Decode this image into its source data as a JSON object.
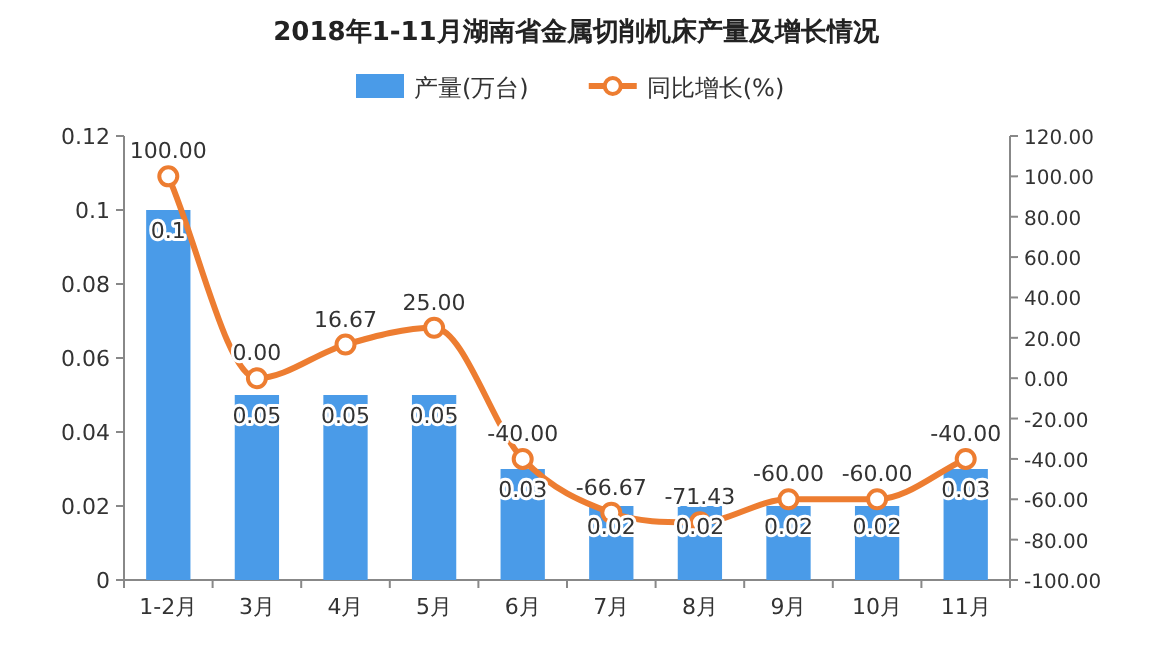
{
  "chart_data": {
    "type": "bar",
    "title": "2018年1-11月湖南省金属切削机床产量及增长情况",
    "categories": [
      "1-2月",
      "3月",
      "4月",
      "5月",
      "6月",
      "7月",
      "8月",
      "9月",
      "10月",
      "11月"
    ],
    "series": [
      {
        "name": "产量(万台)",
        "color": "#4a9be8",
        "values": [
          0.1,
          0.05,
          0.05,
          0.05,
          0.03,
          0.02,
          0.02,
          0.02,
          0.02,
          0.03
        ],
        "value_labels": [
          "0.1",
          "0.05",
          "0.05",
          "0.05",
          "0.03",
          "0.02",
          "0.02",
          "0.02",
          "0.02",
          "0.03"
        ]
      },
      {
        "name": "同比增长(%)",
        "type": "line",
        "axis": "y2",
        "color": "#ed7d31",
        "marker": "circle",
        "values": [
          100,
          0,
          16.67,
          25,
          -40,
          -66.67,
          -71.43,
          -60,
          -60,
          -40
        ],
        "value_labels": [
          "100.00",
          "0.00",
          "16.67",
          "25.00",
          "-40.00",
          "-66.67",
          "-71.43",
          "-60.00",
          "-60.00",
          "-40.00"
        ]
      }
    ],
    "ylim": [
      0,
      0.12
    ],
    "yticks": [
      0,
      0.02,
      0.04,
      0.06,
      0.08,
      0.1,
      0.12
    ],
    "y2lim": [
      -100,
      120
    ],
    "y2ticks": [
      {
        "value": -100,
        "label": "-100.00"
      },
      {
        "value": -80,
        "label": "-80.00"
      },
      {
        "value": -60,
        "label": "-60.00"
      },
      {
        "value": -40,
        "label": "-40.00"
      },
      {
        "value": -20,
        "label": "-20.00"
      },
      {
        "value": 0,
        "label": "0.00"
      },
      {
        "value": 20,
        "label": "20.00"
      },
      {
        "value": 40,
        "label": "40.00"
      },
      {
        "value": 60,
        "label": "60.00"
      },
      {
        "value": 80,
        "label": "80.00"
      },
      {
        "value": 100,
        "label": "100.00"
      },
      {
        "value": 120,
        "label": "120.00"
      }
    ],
    "legend": "top"
  }
}
